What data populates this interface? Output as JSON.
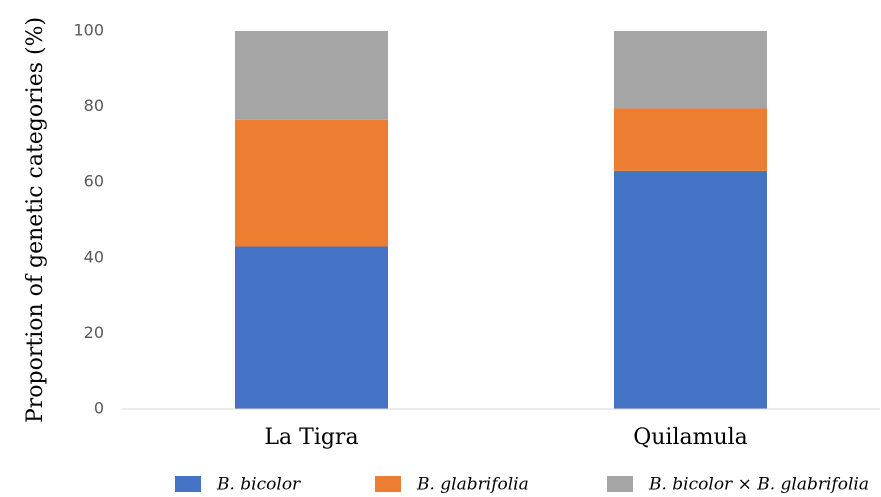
{
  "chart_data": {
    "type": "stacked_bar",
    "ylabel": "Proportion of genetic categories (%)",
    "categories": [
      "La Tigra",
      "Quilamula"
    ],
    "series": [
      {
        "name": "B. bicolor",
        "color": "#4472c4",
        "values": [
          43,
          63
        ]
      },
      {
        "name": "B. glabrifolia",
        "color": "#ed7d31",
        "values": [
          33.5,
          16.5
        ]
      },
      {
        "name": "B. bicolor × B. glabrifolia",
        "color": "#a5a5a5",
        "values": [
          23.5,
          20.5
        ]
      }
    ],
    "ylim": [
      0,
      100
    ],
    "yticks": [
      0,
      20,
      40,
      60,
      80,
      100
    ],
    "grid": false,
    "legend": "bottom"
  }
}
